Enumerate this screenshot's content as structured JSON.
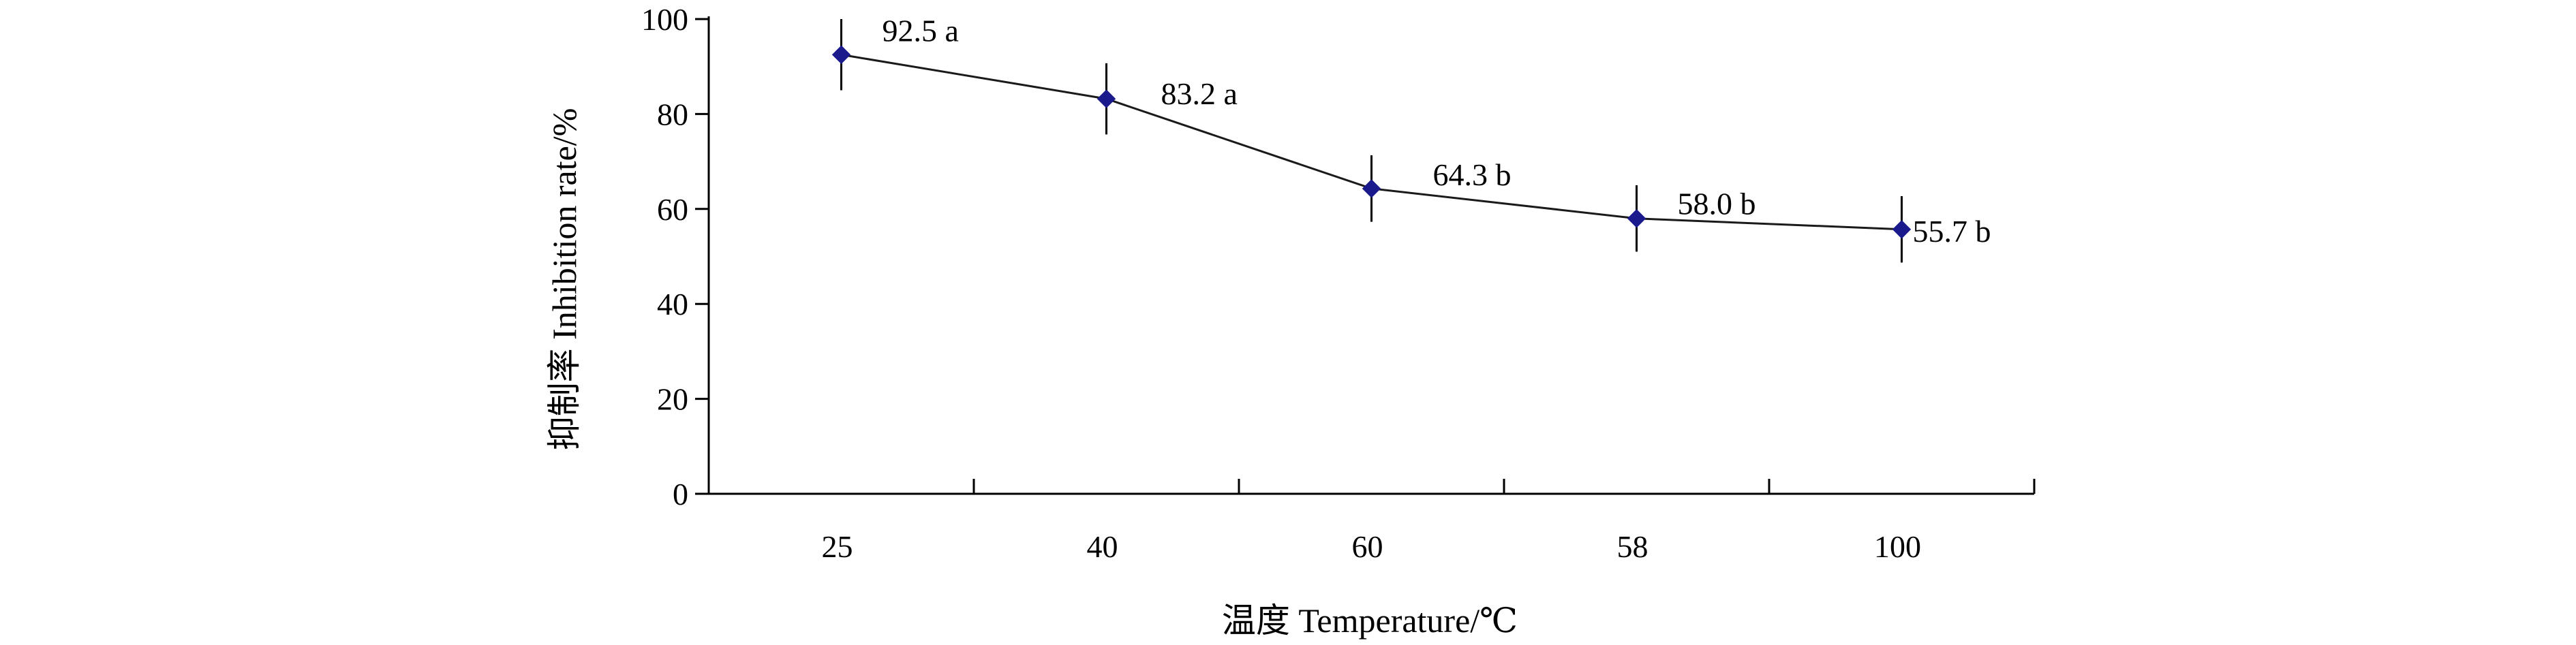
{
  "chart_data": {
    "type": "line",
    "categories": [
      "25",
      "40",
      "60",
      "58",
      "100"
    ],
    "series": [
      {
        "values": [
          92.5,
          83.2,
          64.3,
          58.0,
          55.7
        ],
        "error": [
          7.5,
          7.5,
          7.0,
          7.0,
          7.0
        ],
        "labels": [
          "92.5 a",
          "83.2 a",
          "64.3 b",
          "58.0 b",
          "55.7 b"
        ],
        "color": "#1a1a8c",
        "line_color": "#1a1a1a"
      }
    ],
    "xlabel": "温度 Temperature/℃",
    "ylabel": "抑制率 Inhibition rate/%",
    "ylim": [
      0,
      100
    ],
    "yticks": [
      0,
      20,
      40,
      60,
      80,
      100
    ],
    "grid": false,
    "legend": "none"
  }
}
